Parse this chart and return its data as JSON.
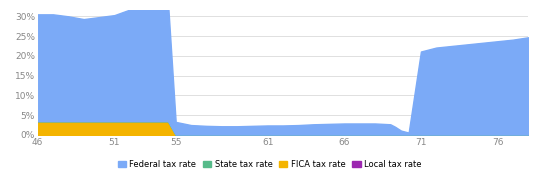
{
  "x": [
    46,
    47,
    48,
    49,
    50,
    51,
    52,
    53,
    53.8,
    54.5,
    55,
    56,
    57,
    58,
    59,
    60,
    61,
    62,
    63,
    64,
    65,
    66,
    67,
    68,
    69,
    69.3,
    69.7,
    70.2,
    71,
    72,
    73,
    74,
    75,
    76,
    77,
    78
  ],
  "federal": [
    0.27,
    0.27,
    0.265,
    0.258,
    0.263,
    0.268,
    0.282,
    0.292,
    0.298,
    0.299,
    0.032,
    0.024,
    0.022,
    0.021,
    0.021,
    0.022,
    0.023,
    0.023,
    0.024,
    0.026,
    0.027,
    0.028,
    0.028,
    0.028,
    0.026,
    0.02,
    0.01,
    0.005,
    0.21,
    0.22,
    0.224,
    0.228,
    0.232,
    0.236,
    0.24,
    0.246
  ],
  "fica": [
    0.035,
    0.035,
    0.035,
    0.035,
    0.035,
    0.035,
    0.035,
    0.035,
    0.035,
    0.035,
    0.001,
    0.001,
    0.001,
    0.001,
    0.001,
    0.001,
    0.001,
    0.001,
    0.001,
    0.001,
    0.001,
    0.001,
    0.001,
    0.001,
    0.001,
    0.001,
    0.001,
    0.001,
    0.001,
    0.001,
    0.001,
    0.001,
    0.001,
    0.001,
    0.001,
    0.001
  ],
  "state": [
    0.0,
    0.0,
    0.0,
    0.0,
    0.0,
    0.0,
    0.0,
    0.0,
    0.0,
    0.0,
    0.0,
    0.0,
    0.0,
    0.0,
    0.0,
    0.0,
    0.0,
    0.0,
    0.0,
    0.0,
    0.0,
    0.0,
    0.0,
    0.0,
    0.0,
    0.0,
    0.0,
    0.0,
    0.0,
    0.0,
    0.0,
    0.0,
    0.0,
    0.0,
    0.0,
    0.0
  ],
  "local": [
    0.0,
    0.0,
    0.0,
    0.0,
    0.0,
    0.0,
    0.0,
    0.0,
    0.0,
    0.0,
    0.0,
    0.0,
    0.0,
    0.0,
    0.0,
    0.0,
    0.0,
    0.0,
    0.0,
    0.0,
    0.0,
    0.0,
    0.0,
    0.0,
    0.0,
    0.0,
    0.0,
    0.0,
    0.0,
    0.0,
    0.0,
    0.0,
    0.0,
    0.0,
    0.0,
    0.0
  ],
  "federal_color": "#7baaf7",
  "state_color": "#57bb8a",
  "fica_color": "#f4b400",
  "local_color": "#9c27b0",
  "xlim": [
    46,
    78
  ],
  "ylim": [
    0,
    0.315
  ],
  "xticks": [
    46,
    51,
    55,
    61,
    66,
    71,
    76
  ],
  "yticks": [
    0.0,
    0.05,
    0.1,
    0.15,
    0.2,
    0.25,
    0.3
  ],
  "ytick_labels": [
    "0%",
    "5%",
    "10%",
    "15%",
    "20%",
    "25%",
    "30%"
  ],
  "xtick_labels": [
    "46",
    "51",
    "55",
    "61",
    "66",
    "71",
    "76"
  ],
  "legend_labels": [
    "Federal tax rate",
    "State tax rate",
    "FICA tax rate",
    "Local tax rate"
  ],
  "background_color": "#ffffff",
  "grid_color": "#e0e0e0"
}
